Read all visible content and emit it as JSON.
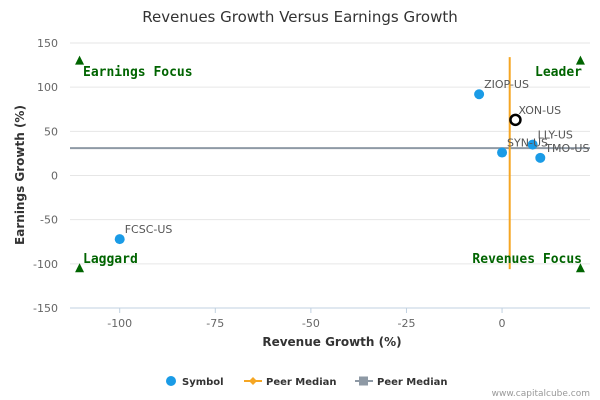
{
  "chart_data": {
    "type": "scatter",
    "title": "Revenues Growth Versus Earnings Growth",
    "xlabel": "Revenue Growth (%)",
    "ylabel": "Earnings Growth (%)",
    "xlim": [
      -113,
      23
    ],
    "ylim": [
      -150,
      150
    ],
    "xticks": [
      -100,
      -75,
      -50,
      -25,
      0
    ],
    "yticks": [
      150,
      100,
      50,
      0,
      -50,
      -100,
      -150
    ],
    "grid": "horizontal",
    "series": [
      {
        "name": "Symbol",
        "color": "#1a9be6",
        "points": [
          {
            "label": "ZIOP-US",
            "x": -6,
            "y": 92
          },
          {
            "label": "LLY-US",
            "x": 8,
            "y": 35
          },
          {
            "label": "SYN-US",
            "x": 0,
            "y": 26
          },
          {
            "label": "TMO-US",
            "x": 10,
            "y": 20
          },
          {
            "label": "FCSC-US",
            "x": -100,
            "y": -72
          }
        ]
      }
    ],
    "highlight_point": {
      "label": "XON-US",
      "x": 3.5,
      "y": 63
    },
    "peer_median_x": 2,
    "peer_median_y": 31,
    "quadrant_labels": {
      "top_left": "Earnings Focus",
      "top_right": "Leader",
      "bottom_left": "Laggard",
      "bottom_right": "Revenues Focus"
    },
    "legend": [
      {
        "label": "Symbol",
        "color": "#1a9be6"
      },
      {
        "label": "Peer Median",
        "color": "#f5a623"
      },
      {
        "label": "Peer Median",
        "color": "#8e99a5"
      }
    ],
    "quadrant_marker_color": "#006400"
  },
  "credit": "www.capitalcube.com"
}
